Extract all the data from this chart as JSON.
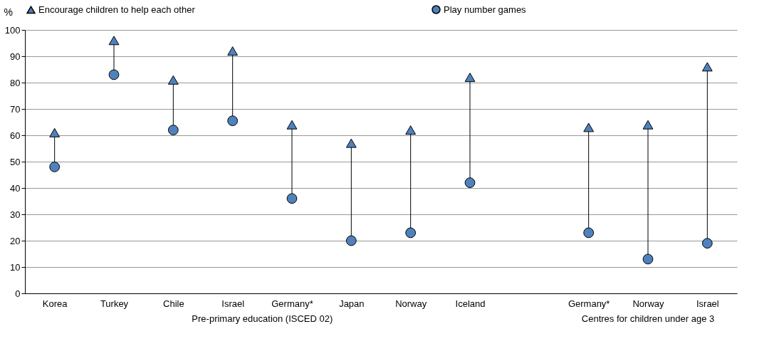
{
  "chart_data": {
    "type": "scatter",
    "ylabel": "%",
    "categories": [
      "Korea",
      "Turkey",
      "Chile",
      "Israel",
      "Germany*",
      "Japan",
      "Norway",
      "Iceland",
      null,
      "Germany*",
      "Norway",
      "Israel"
    ],
    "series": [
      {
        "name": "Encourage children to help each other",
        "color": "#4f81bd",
        "marker": "triangle",
        "values": [
          61,
          96,
          81,
          92,
          64,
          57,
          62,
          82,
          null,
          63,
          64,
          86
        ]
      },
      {
        "name": "Play number games",
        "color": "#4f81bd",
        "marker": "circle",
        "values": [
          48,
          83,
          62,
          65.5,
          36,
          20,
          23,
          42,
          null,
          23,
          13,
          19
        ]
      }
    ],
    "ylim": [
      0,
      100
    ],
    "yticks": [
      0,
      10,
      20,
      30,
      40,
      50,
      60,
      70,
      80,
      90,
      100
    ],
    "grid": "y",
    "legend": "top",
    "annotations": [
      "Pre-primary education (ISCED 02)",
      "Centres for children under age 3"
    ]
  }
}
